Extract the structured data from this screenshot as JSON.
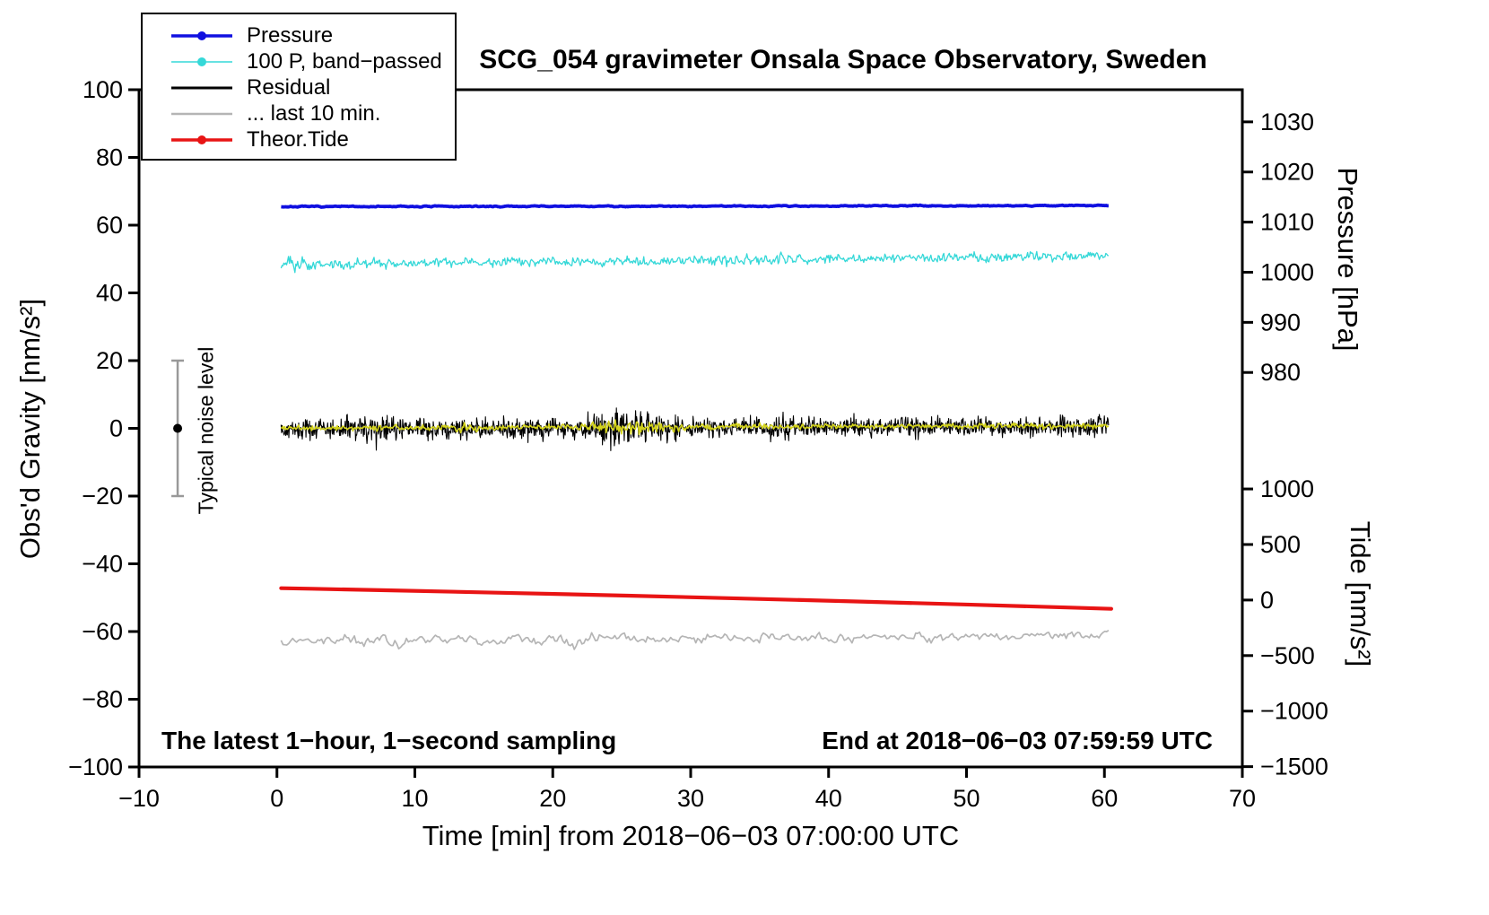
{
  "chart_data": {
    "type": "line",
    "title": "SCG_054 gravimeter Onsala Space Observatory, Sweden",
    "subtitle_left": "The latest 1−hour, 1−second sampling",
    "subtitle_right": "End at 2018−06−03 07:59:59 UTC",
    "xlabel": "Time [min] from 2018−06−03 07:00:00 UTC",
    "ylabel_left": "Obs'd Gravity [nm/s²]",
    "ylabel_right_pressure": "Pressure [hPa]",
    "ylabel_right_tide": "Tide [nm/s²]",
    "xlim": [
      -10,
      70
    ],
    "ylim_left": [
      -100,
      100
    ],
    "xticks": [
      -10,
      0,
      10,
      20,
      30,
      40,
      50,
      60,
      70
    ],
    "yticks_left": [
      -100,
      -80,
      -60,
      -40,
      -20,
      0,
      20,
      40,
      60,
      80,
      100
    ],
    "right_axis_pressure": {
      "ticks": [
        1030,
        1020,
        1010,
        1000,
        990,
        980
      ],
      "gravity_positions": [
        90.5,
        75.7,
        60.9,
        46.1,
        31.3,
        16.5
      ]
    },
    "right_axis_tide": {
      "ticks": [
        1000,
        500,
        0,
        -500,
        -1000,
        -1500
      ],
      "gravity_positions": [
        -17.9,
        -34.3,
        -50.7,
        -67.1,
        -83.5,
        -99.9
      ]
    },
    "grid": false,
    "legend_position": "top-left",
    "legend": [
      {
        "label": "Pressure",
        "color": "#1010e0",
        "dot": true,
        "line_width": 3.5
      },
      {
        "label": "100 P, band−passed",
        "color": "#35d8d8",
        "dot": true,
        "line_width": 1.5
      },
      {
        "label": "Residual",
        "color": "#000000",
        "dot": false,
        "line_width": 3
      },
      {
        "label": "... last 10 min.",
        "color": "#b5b5b5",
        "dot": false,
        "line_width": 2.5
      },
      {
        "label": "Theor.Tide",
        "color": "#e81414",
        "dot": true,
        "line_width": 3.5
      }
    ],
    "noise_bar": {
      "label": "Typical noise level",
      "x": -7.2,
      "center_gravity": 0,
      "half_height": 20,
      "bar_color": "#999999",
      "dot_color": "#000000"
    },
    "series": [
      {
        "name": "Pressure",
        "axis": "right-pressure",
        "approx_pressure_hPa": 1013,
        "color": "#1010e0",
        "stroke_width": 3.8,
        "x_min": 0.3,
        "x_max": 60.3,
        "baseline_start": 65.45,
        "baseline_end": 65.8,
        "noise_amp": 0.3,
        "render": {
          "points": 700,
          "seed": 7,
          "smooth": 0.35
        }
      },
      {
        "name": "100 P, band−passed",
        "axis": "left-gravity",
        "color": "#35d8d8",
        "stroke_width": 1.3,
        "x_min": 0.3,
        "x_max": 60.3,
        "baseline_start": 48.4,
        "baseline_end": 50.9,
        "noise_amp": 1.5,
        "bursts": [
          {
            "x": 1.6,
            "sigma": 0.7,
            "gain": 2.0
          },
          {
            "x": 5.2,
            "sigma": 0.6,
            "gain": 1.7
          },
          {
            "x": 34,
            "sigma": 3,
            "gain": 1.25
          }
        ],
        "render": {
          "points": 900,
          "seed": 23,
          "smooth": 0.7
        }
      },
      {
        "name": "Residual",
        "axis": "left-gravity",
        "color": "#000000",
        "stroke_width": 1.1,
        "x_min": 0.3,
        "x_max": 60.3,
        "baseline_start": -0.3,
        "baseline_end": 0.6,
        "noise_amp": 2.4,
        "bursts": [
          {
            "x": 7,
            "sigma": 1.2,
            "gain": 1.6
          },
          {
            "x": 13.5,
            "sigma": 1.0,
            "gain": 1.3
          },
          {
            "x": 25.5,
            "sigma": 2.3,
            "gain": 1.9
          },
          {
            "x": 36.5,
            "sigma": 1.2,
            "gain": 1.35
          }
        ],
        "render": {
          "points": 1600,
          "seed": 42,
          "smooth": 1
        }
      },
      {
        "name": "Residual low-pass (yellow overlay)",
        "axis": "left-gravity",
        "color": "#d3d31c",
        "stroke_width": 1.6,
        "x_min": 0.3,
        "x_max": 60.3,
        "baseline_start": 0.1,
        "baseline_end": 0.8,
        "noise_amp": 0.85,
        "bursts": [
          {
            "x": 13.5,
            "sigma": 1.0,
            "gain": 1.5
          },
          {
            "x": 25.5,
            "sigma": 2.3,
            "gain": 2.6
          }
        ],
        "render": {
          "points": 900,
          "seed": 5,
          "smooth": 0.8
        }
      },
      {
        "name": "Theor.Tide",
        "axis": "right-tide",
        "type": "smooth",
        "tide_start_nms2": 105,
        "tide_end_nms2": -80,
        "color": "#e81414",
        "stroke_width": 4.2,
        "x_min": 0.3,
        "x_max": 60.5,
        "start_gravity": -47.2,
        "end_gravity": -53.3,
        "curve": 0.35
      },
      {
        "name": "... last 10 min.",
        "axis": "left-gravity",
        "color": "#b5b5b5",
        "stroke_width": 1.7,
        "x_min": 0.3,
        "x_max": 60.3,
        "baseline_start": -62.9,
        "baseline_end": -61.2,
        "noise_amp": 2.3,
        "bursts": [
          {
            "x": 8.3,
            "sigma": 0.8,
            "gain": 1.9
          },
          {
            "x": 21.5,
            "sigma": 0.9,
            "gain": 1.4
          },
          {
            "x": 47,
            "sigma": 1.0,
            "gain": 1.3
          }
        ],
        "render": {
          "points": 430,
          "seed": 99,
          "smooth": 0.45
        }
      }
    ]
  }
}
